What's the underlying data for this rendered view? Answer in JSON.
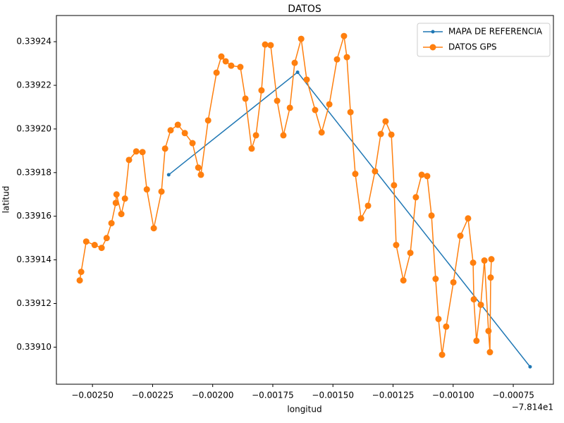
{
  "chart_data": {
    "type": "line",
    "title": "DATOS",
    "x_label": "longitud",
    "y_label": "latitud",
    "x_offset_label": "−7.814e1",
    "xlim": [
      -0.00265,
      -0.000583
    ],
    "ylim": [
      0.339083,
      0.339252
    ],
    "xticks": [
      {
        "value": -0.0025,
        "label": "−0.00250"
      },
      {
        "value": -0.00225,
        "label": "−0.00225"
      },
      {
        "value": -0.002,
        "label": "−0.00200"
      },
      {
        "value": -0.00175,
        "label": "−0.00175"
      },
      {
        "value": -0.0015,
        "label": "−0.00150"
      },
      {
        "value": -0.00125,
        "label": "−0.00125"
      },
      {
        "value": -0.001,
        "label": "−0.00100"
      },
      {
        "value": -0.00075,
        "label": "−0.00075"
      }
    ],
    "yticks": [
      {
        "value": 0.3391,
        "label": "0.33910"
      },
      0.33912,
      0.33914,
      0.33916,
      0.33918,
      {
        "value": 0.3392,
        "label": "0.33920"
      },
      0.33922,
      0.33924
    ],
    "legend": "upper right",
    "series": [
      {
        "name": "MAPA DE REFERENCIA",
        "color": "#1f77b4",
        "marker_size": 2.5,
        "x": [
          -0.002183,
          -0.001647,
          -0.00068
        ],
        "values": [
          0.339179,
          0.339226,
          0.339091
        ]
      },
      {
        "name": "DATOS GPS",
        "color": "#ff7f0e",
        "marker_size": 4.5,
        "x": [
          -0.002553,
          -0.002547,
          -0.002526,
          -0.002491,
          -0.002462,
          -0.002441,
          -0.002421,
          -0.002403,
          -0.0024,
          -0.00238,
          -0.002365,
          -0.002348,
          -0.002318,
          -0.002292,
          -0.002274,
          -0.002245,
          -0.002213,
          -0.002198,
          -0.002175,
          -0.002145,
          -0.002116,
          -0.002084,
          -0.00206,
          -0.002049,
          -0.002019,
          -0.001984,
          -0.001964,
          -0.001946,
          -0.001923,
          -0.001885,
          -0.001864,
          -0.001838,
          -0.00182,
          -0.001797,
          -0.001782,
          -0.001759,
          -0.001732,
          -0.001706,
          -0.001679,
          -0.001659,
          -0.001632,
          -0.001609,
          -0.001574,
          -0.001547,
          -0.001515,
          -0.001483,
          -0.001454,
          -0.001442,
          -0.001427,
          -0.001407,
          -0.001383,
          -0.001354,
          -0.001325,
          -0.001301,
          -0.001281,
          -0.001257,
          -0.001246,
          -0.001237,
          -0.001207,
          -0.001178,
          -0.001155,
          -0.001131,
          -0.001108,
          -0.00109,
          -0.001073,
          -0.001061,
          -0.001046,
          -0.001029,
          -0.000999,
          -0.00097,
          -0.000938,
          -0.000917,
          -0.000914,
          -0.000903,
          -0.000885,
          -0.00087,
          -0.000853,
          -0.000847,
          -0.000844,
          -0.000841
        ],
        "values": [
          0.3391306,
          0.3391345,
          0.3391484,
          0.3391468,
          0.3391455,
          0.33915,
          0.3391568,
          0.3391661,
          0.33917,
          0.339161,
          0.3391681,
          0.3391858,
          0.3391897,
          0.3391894,
          0.3391723,
          0.3391545,
          0.3391713,
          0.339191,
          0.3391994,
          0.3392019,
          0.3391981,
          0.3391935,
          0.3391823,
          0.339179,
          0.3392039,
          0.3392258,
          0.3392332,
          0.339231,
          0.339229,
          0.3392284,
          0.3392139,
          0.339191,
          0.3391971,
          0.3392177,
          0.3392387,
          0.3392384,
          0.3392129,
          0.3391971,
          0.3392097,
          0.3392303,
          0.3392413,
          0.3392226,
          0.3392087,
          0.3391984,
          0.3392113,
          0.3392319,
          0.3392426,
          0.3392329,
          0.3392077,
          0.3391794,
          0.339159,
          0.3391648,
          0.3391806,
          0.3391977,
          0.3392035,
          0.3391974,
          0.3391742,
          0.3391468,
          0.3391306,
          0.3391432,
          0.3391687,
          0.339179,
          0.3391784,
          0.3391603,
          0.3391313,
          0.3391129,
          0.3390965,
          0.3391094,
          0.3391297,
          0.339151,
          0.339159,
          0.3391387,
          0.3391219,
          0.3391029,
          0.3391194,
          0.3391397,
          0.3391074,
          0.3390977,
          0.3391319,
          0.3391403
        ]
      }
    ]
  }
}
